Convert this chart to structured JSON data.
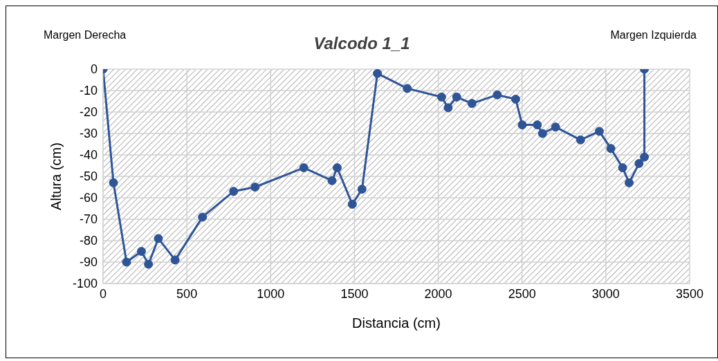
{
  "chart_data": {
    "type": "line",
    "title": "Valcodo 1_1",
    "annotations": [
      "Margen Derecha",
      "Margen Izquierda"
    ],
    "xlabel": "Distancia (cm)",
    "ylabel": "Altura (cm)",
    "x": [
      0,
      62,
      140,
      229,
      271,
      330,
      430,
      593,
      779,
      907,
      1198,
      1366,
      1397,
      1487,
      1545,
      1637,
      1815,
      2020,
      2059,
      2110,
      2201,
      2352,
      2462,
      2501,
      2591,
      2622,
      2700,
      2849,
      2961,
      3030,
      3100,
      3139,
      3198,
      3230,
      3230
    ],
    "series": [
      {
        "color": "#2f5597",
        "values": [
          0,
          -53,
          -90,
          -85,
          -91,
          -79,
          -89,
          -69,
          -57,
          -55,
          -46,
          -52,
          -46,
          -63,
          -56,
          -2,
          -9,
          -13,
          -18,
          -13,
          -16,
          -12,
          -14,
          -26,
          -26,
          -30,
          -27,
          -33,
          -29,
          -37,
          -46,
          -53,
          -44,
          -41,
          0
        ]
      }
    ],
    "xlim": [
      0,
      3500
    ],
    "xticks": [
      0,
      500,
      1000,
      1500,
      2000,
      2500,
      3000,
      3500
    ],
    "ylim": [
      -100,
      0
    ],
    "yticks": [
      -100,
      -90,
      -80,
      -70,
      -60,
      -50,
      -40,
      -30,
      -20,
      -10,
      0
    ],
    "grid": true,
    "legend": false,
    "marker": "circle",
    "line_style": "solid"
  }
}
